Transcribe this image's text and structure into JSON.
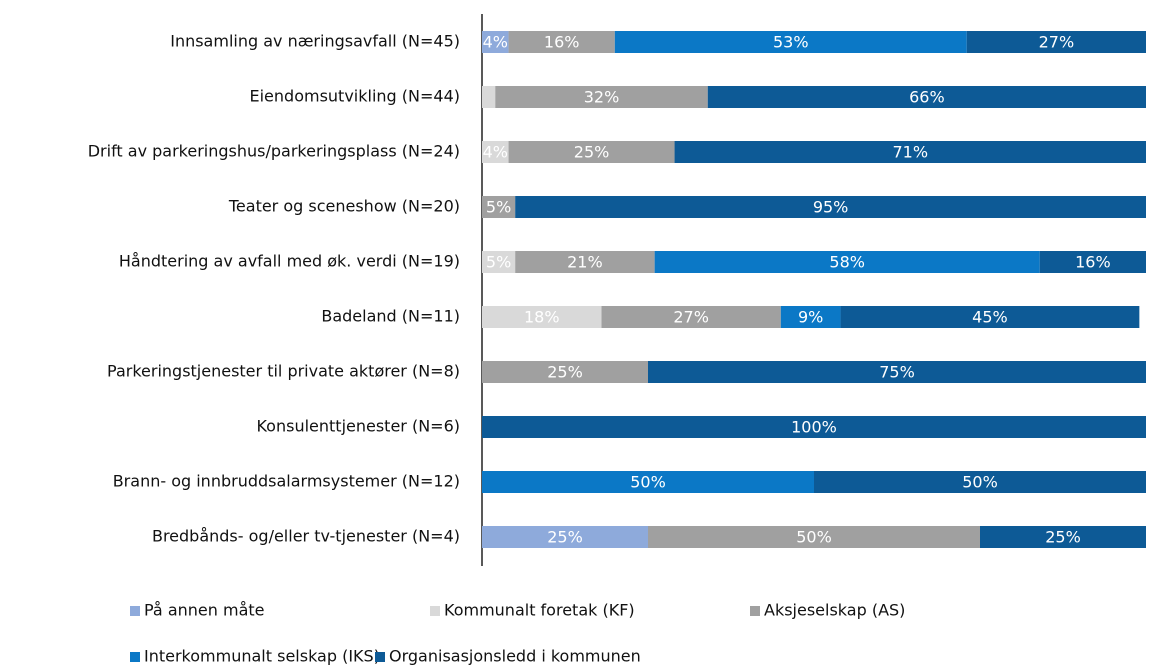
{
  "chart_data": {
    "type": "stacked-barh",
    "categories": [
      "Innsamling av næringsavfall (N=45)",
      "Eiendomsutvikling (N=44)",
      "Drift av parkeringshus/parkeringsplass (N=24)",
      "Teater og sceneshow (N=20)",
      "Håndtering av avfall med øk. verdi (N=19)",
      "Badeland (N=11)",
      "Parkeringstjenester til private aktører (N=8)",
      "Konsulenttjenester (N=6)",
      "Brann- og innbruddsalarmsystemer  (N=12)",
      "Bredbånds- og/eller tv-tjenester (N=4)"
    ],
    "series": [
      {
        "name": "På annen måte",
        "color": "#8eaadb",
        "values": [
          4,
          0,
          0,
          0,
          0,
          0,
          0,
          0,
          0,
          25
        ],
        "value_labels": [
          "4%",
          null,
          null,
          null,
          null,
          null,
          null,
          null,
          null,
          "25%"
        ]
      },
      {
        "name": "Kommunalt foretak (KF)",
        "color": "#d9d9d9",
        "values": [
          0,
          2,
          4,
          0,
          5,
          18,
          0,
          0,
          0,
          0
        ],
        "value_labels": [
          null,
          null,
          "4%",
          null,
          "5%",
          "18%",
          null,
          null,
          null,
          null
        ]
      },
      {
        "name": "Aksjeselskap (AS)",
        "color": "#a0a0a0",
        "values": [
          16,
          32,
          25,
          5,
          21,
          27,
          25,
          0,
          0,
          50
        ],
        "value_labels": [
          "16%",
          "32%",
          "25%",
          "5%",
          "21%",
          "27%",
          "25%",
          null,
          null,
          "50%"
        ]
      },
      {
        "name": "Interkommunalt selskap (IKS)",
        "color": "#0b78c6",
        "values": [
          53,
          0,
          0,
          0,
          58,
          9,
          0,
          0,
          50,
          0
        ],
        "value_labels": [
          "53%",
          null,
          null,
          null,
          "58%",
          "9%",
          null,
          null,
          "50%",
          null
        ]
      },
      {
        "name": "Organisasjonsledd i kommunen",
        "color": "#0d5a96",
        "values": [
          27,
          66,
          71,
          95,
          16,
          45,
          75,
          100,
          50,
          25
        ],
        "value_labels": [
          "27%",
          "66%",
          "71%",
          "95%",
          "16%",
          "45%",
          "75%",
          "100%",
          "50%",
          "25%"
        ]
      }
    ],
    "xlim": [
      0,
      100
    ]
  }
}
